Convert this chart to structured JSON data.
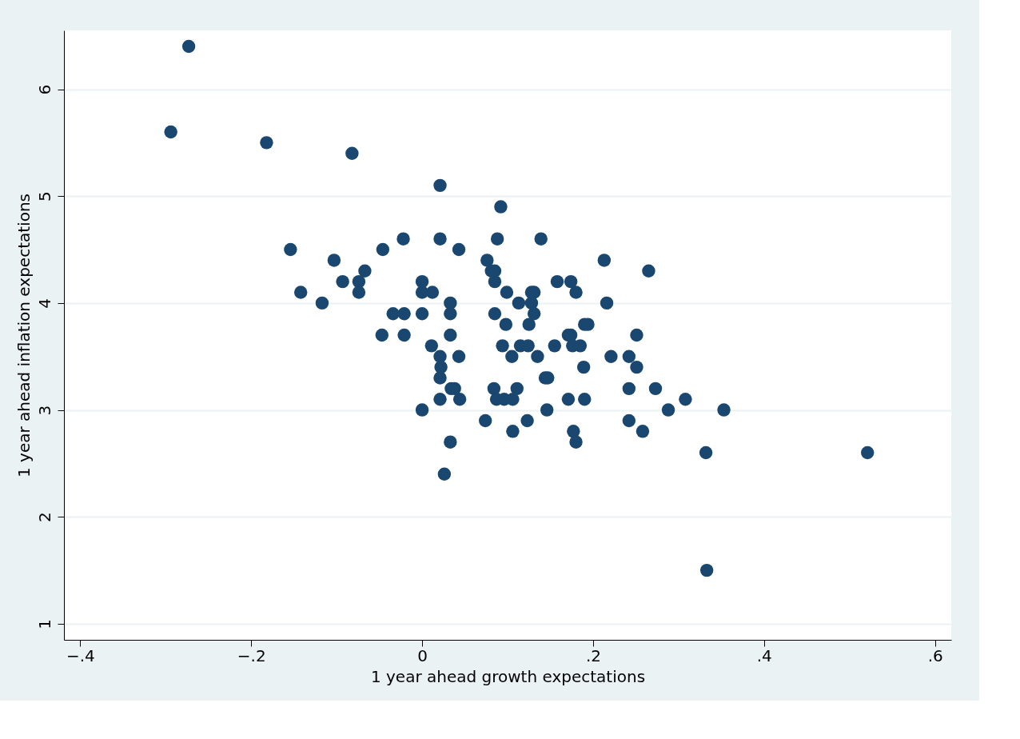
{
  "chart_data": {
    "type": "scatter",
    "xlabel": "1 year ahead growth expectations",
    "ylabel": "1 year ahead inflation expectations",
    "x": [
      -0.294,
      -0.273,
      -0.182,
      -0.082,
      -0.154,
      -0.142,
      -0.103,
      -0.117,
      -0.093,
      -0.074,
      -0.074,
      -0.067,
      -0.046,
      -0.022,
      -0.034,
      -0.021,
      -0.047,
      -0.021,
      0.0,
      0.0,
      0.012,
      0.0,
      0.0,
      0.021,
      0.021,
      0.043,
      0.033,
      0.033,
      0.033,
      0.011,
      0.021,
      0.043,
      0.022,
      0.021,
      0.034,
      0.038,
      0.021,
      0.044,
      0.033,
      0.026,
      0.092,
      0.088,
      0.139,
      0.076,
      0.081,
      0.085,
      0.085,
      0.099,
      0.085,
      0.113,
      0.128,
      0.131,
      0.128,
      0.098,
      0.125,
      0.131,
      0.094,
      0.115,
      0.124,
      0.105,
      0.135,
      0.084,
      0.111,
      0.087,
      0.096,
      0.106,
      0.074,
      0.123,
      0.106,
      0.144,
      0.147,
      0.146,
      0.155,
      0.158,
      0.174,
      0.18,
      0.171,
      0.174,
      0.176,
      0.185,
      0.19,
      0.194,
      0.189,
      0.171,
      0.19,
      0.177,
      0.18,
      0.213,
      0.216,
      0.221,
      0.242,
      0.251,
      0.251,
      0.242,
      0.242,
      0.258,
      0.265,
      0.273,
      0.288,
      0.308,
      0.332,
      0.353,
      0.333,
      0.521
    ],
    "values": [
      5.6,
      6.4,
      5.5,
      5.4,
      4.5,
      4.1,
      4.4,
      4.0,
      4.2,
      4.2,
      4.1,
      4.3,
      4.5,
      4.6,
      3.9,
      3.9,
      3.7,
      3.7,
      4.2,
      4.1,
      4.1,
      3.9,
      3.0,
      5.1,
      4.6,
      4.5,
      4.0,
      3.9,
      3.7,
      3.6,
      3.5,
      3.5,
      3.4,
      3.3,
      3.2,
      3.2,
      3.1,
      3.1,
      2.7,
      2.4,
      4.9,
      4.6,
      4.6,
      4.4,
      4.3,
      4.3,
      4.2,
      4.1,
      3.9,
      4.0,
      4.0,
      4.1,
      4.1,
      3.8,
      3.8,
      3.9,
      3.6,
      3.6,
      3.6,
      3.5,
      3.5,
      3.2,
      3.2,
      3.1,
      3.1,
      3.1,
      2.9,
      2.9,
      2.8,
      3.3,
      3.3,
      3.0,
      3.6,
      4.2,
      4.2,
      4.1,
      3.7,
      3.7,
      3.6,
      3.6,
      3.8,
      3.8,
      3.4,
      3.1,
      3.1,
      2.8,
      2.7,
      4.4,
      4.0,
      3.5,
      3.5,
      3.7,
      3.4,
      3.2,
      2.9,
      2.8,
      4.3,
      3.2,
      3.0,
      3.1,
      2.6,
      3.0,
      1.5,
      2.6
    ],
    "color": "#1a476f",
    "marker": "circle",
    "grid": "y",
    "legend": false,
    "xlim": [
      -0.419,
      0.619
    ],
    "xticks": [
      {
        "value": -0.4,
        "label": "−.4"
      },
      {
        "value": -0.2,
        "label": "−.2"
      },
      {
        "value": 0,
        "label": "0"
      },
      {
        "value": 0.2,
        "label": ".2"
      },
      {
        "value": 0.4,
        "label": ".4"
      },
      {
        "value": 0.6,
        "label": ".6"
      }
    ],
    "ylim": [
      0.85,
      6.55
    ],
    "yticks": [
      1,
      2,
      3,
      4,
      5,
      6
    ]
  }
}
